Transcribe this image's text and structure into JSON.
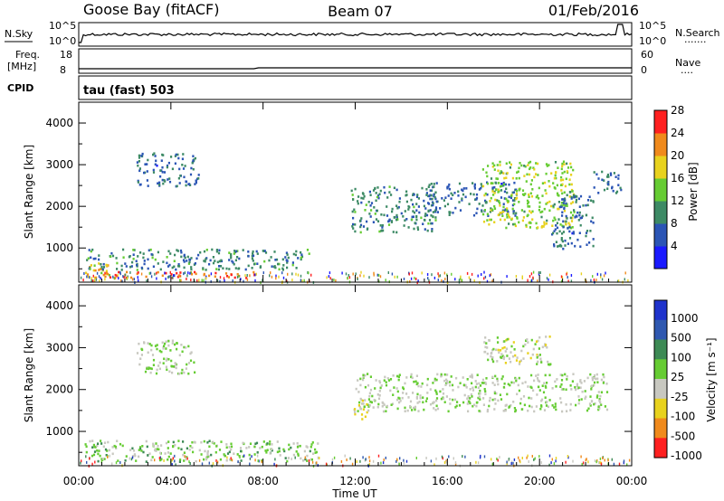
{
  "header": {
    "station": "Goose Bay (fitACF)",
    "beam": "Beam 07",
    "date": "01/Feb/2016"
  },
  "noise_panel": {
    "left_label": "N.Sky",
    "left_ticks": [
      "10^5",
      "10^0"
    ],
    "right_ticks": [
      "10^5",
      "10^0"
    ],
    "right_label": "N.Search",
    "right_dots": "·······"
  },
  "freq_panel": {
    "left_label_1": "Freq.",
    "left_label_2": "[MHz]",
    "left_ticks": [
      "18",
      "8"
    ],
    "right_ticks": [
      "60",
      "0"
    ],
    "right_label": "Nave",
    "right_dots": "····"
  },
  "cpid_panel": {
    "label": "CPID",
    "text": "tau (fast) 503"
  },
  "x_axis": {
    "title": "Time UT",
    "ticks": [
      "00:00",
      "04:00",
      "08:00",
      "12:00",
      "16:00",
      "20:00",
      "00:00"
    ]
  },
  "power_panel": {
    "ylabel": "Slant Range [km]",
    "yticks": [
      "1000",
      "2000",
      "3000",
      "4000"
    ],
    "colorbar_title": "Power [dB]",
    "colorbar_ticks": [
      "4",
      "8",
      "12",
      "16",
      "20",
      "24",
      "28"
    ],
    "colors": [
      "#1a1aff",
      "#2b55b5",
      "#3d8a65",
      "#66cc33",
      "#e8d21e",
      "#f08a1c",
      "#ff2020"
    ]
  },
  "velocity_panel": {
    "ylabel": "Slant Range [km]",
    "yticks": [
      "1000",
      "2000",
      "3000",
      "4000"
    ],
    "colorbar_title": "Velocity [m s⁻¹]",
    "colorbar_ticks": [
      "1000",
      "500",
      "100",
      "25",
      "-25",
      "-100",
      "-500",
      "-1000"
    ],
    "colors": [
      "#1f33cc",
      "#2f58b0",
      "#3d8a55",
      "#66cc33",
      "#c8c8c0",
      "#e8d21e",
      "#f08a1c",
      "#ff2020"
    ]
  },
  "chart_data": [
    {
      "type": "heatmap",
      "title": "Power [dB]",
      "xlabel": "Time UT",
      "ylabel": "Slant Range [km]",
      "xlim": [
        "00:00",
        "24:00"
      ],
      "ylim": [
        180,
        4500
      ],
      "color_scale": [
        0,
        30
      ],
      "scatter_regions": [
        {
          "t0": 0.2,
          "t1": 1.4,
          "r0": 300,
          "r1": 700,
          "value": 20
        },
        {
          "t0": 1.0,
          "t1": 7.8,
          "r0": 300,
          "r1": 450,
          "value": 26
        },
        {
          "t0": 0.3,
          "t1": 10.0,
          "r0": 500,
          "r1": 1000,
          "value": 10
        },
        {
          "t0": 2.5,
          "t1": 5.2,
          "r0": 2500,
          "r1": 3300,
          "value": 8
        },
        {
          "t0": 11.8,
          "t1": 15.5,
          "r0": 1400,
          "r1": 2500,
          "value": 10
        },
        {
          "t0": 15.0,
          "t1": 19.0,
          "r0": 1800,
          "r1": 2600,
          "value": 8
        },
        {
          "t0": 17.5,
          "t1": 21.5,
          "r0": 1500,
          "r1": 3100,
          "value": 16
        },
        {
          "t0": 20.5,
          "t1": 22.3,
          "r0": 1000,
          "r1": 2300,
          "value": 8
        },
        {
          "t0": 22.3,
          "t1": 23.5,
          "r0": 2300,
          "r1": 2900,
          "value": 8
        }
      ]
    },
    {
      "type": "heatmap",
      "title": "Velocity [m s⁻¹]",
      "xlabel": "Time UT",
      "ylabel": "Slant Range [km]",
      "xlim": [
        "00:00",
        "24:00"
      ],
      "ylim": [
        180,
        4500
      ],
      "color_scale": [
        -1000,
        1000
      ],
      "scatter_regions": [
        {
          "t0": 0.2,
          "t1": 10.5,
          "r0": 300,
          "r1": 800,
          "value": 80
        },
        {
          "t0": 2.5,
          "t1": 5.0,
          "r0": 2400,
          "r1": 3200,
          "value": 0
        },
        {
          "t0": 12.0,
          "t1": 23.0,
          "r0": 1500,
          "r1": 2400,
          "value": 0
        },
        {
          "t0": 11.9,
          "t1": 12.6,
          "r0": 1300,
          "r1": 1800,
          "value": -200
        },
        {
          "t0": 17.5,
          "t1": 20.5,
          "r0": 2600,
          "r1": 3300,
          "value": -80
        }
      ]
    }
  ]
}
